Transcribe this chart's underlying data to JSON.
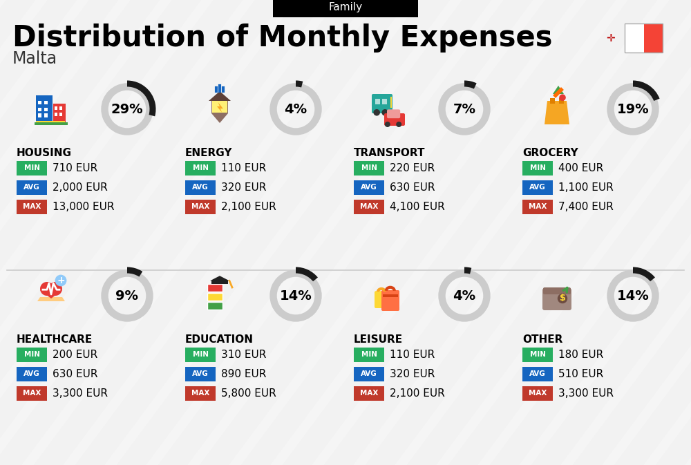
{
  "title": "Distribution of Monthly Expenses",
  "subtitle": "Malta",
  "category_label": "Family",
  "bg_color": "#f2f2f2",
  "categories": [
    {
      "name": "HOUSING",
      "pct": 29,
      "min": "710 EUR",
      "avg": "2,000 EUR",
      "max": "13,000 EUR",
      "row": 0,
      "col": 0,
      "icon": "🏢"
    },
    {
      "name": "ENERGY",
      "pct": 4,
      "min": "110 EUR",
      "avg": "320 EUR",
      "max": "2,100 EUR",
      "row": 0,
      "col": 1,
      "icon": "⚡"
    },
    {
      "name": "TRANSPORT",
      "pct": 7,
      "min": "220 EUR",
      "avg": "630 EUR",
      "max": "4,100 EUR",
      "row": 0,
      "col": 2,
      "icon": "🚌"
    },
    {
      "name": "GROCERY",
      "pct": 19,
      "min": "400 EUR",
      "avg": "1,100 EUR",
      "max": "7,400 EUR",
      "row": 0,
      "col": 3,
      "icon": "🛒"
    },
    {
      "name": "HEALTHCARE",
      "pct": 9,
      "min": "200 EUR",
      "avg": "630 EUR",
      "max": "3,300 EUR",
      "row": 1,
      "col": 0,
      "icon": "❤"
    },
    {
      "name": "EDUCATION",
      "pct": 14,
      "min": "310 EUR",
      "avg": "890 EUR",
      "max": "5,800 EUR",
      "row": 1,
      "col": 1,
      "icon": "🎓"
    },
    {
      "name": "LEISURE",
      "pct": 4,
      "min": "110 EUR",
      "avg": "320 EUR",
      "max": "2,100 EUR",
      "row": 1,
      "col": 2,
      "icon": "🛍"
    },
    {
      "name": "OTHER",
      "pct": 14,
      "min": "180 EUR",
      "avg": "510 EUR",
      "max": "3,300 EUR",
      "row": 1,
      "col": 3,
      "icon": "💰"
    }
  ],
  "color_min": "#27ae60",
  "color_avg": "#1565c0",
  "color_max": "#c0392b",
  "color_ring_filled": "#1a1a1a",
  "color_ring_empty": "#cccccc",
  "color_flag_red": "#f44336",
  "title_fontsize": 30,
  "subtitle_fontsize": 17,
  "pct_fontsize": 16,
  "label_fontsize": 11,
  "value_fontsize": 11,
  "stripe_color": "#ffffff",
  "stripe_alpha": 0.25,
  "stripe_lw": 10
}
